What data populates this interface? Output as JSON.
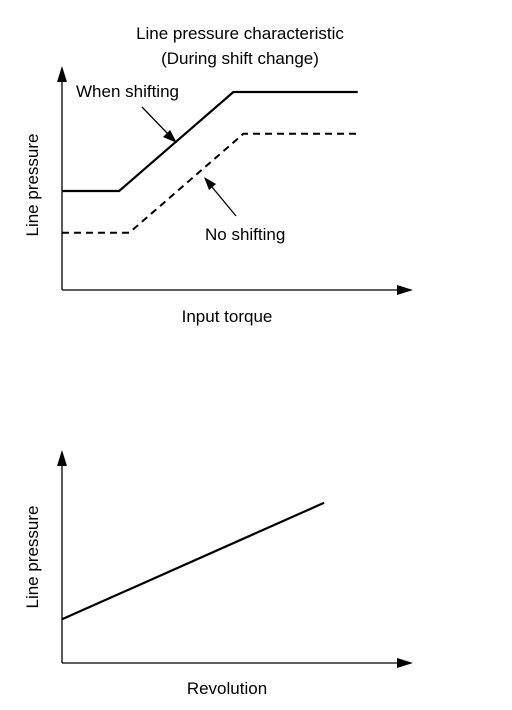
{
  "chart_data": [
    {
      "type": "line",
      "title": "Line pressure characteristic",
      "subtitle": "(During shift change)",
      "xlabel": "Input torque",
      "ylabel": "Line pressure",
      "grid": false,
      "xlim": [
        0,
        100
      ],
      "ylim": [
        0,
        100
      ],
      "series": [
        {
          "name": "When shifting",
          "style": "solid",
          "x": [
            0,
            17,
            51,
            88
          ],
          "y": [
            45,
            45,
            90,
            90
          ]
        },
        {
          "name": "No shifting",
          "style": "dashed",
          "x": [
            0,
            20,
            54,
            88
          ],
          "y": [
            26,
            26,
            71,
            71
          ]
        }
      ]
    },
    {
      "type": "line",
      "title": "",
      "xlabel": "Revolution",
      "ylabel": "Line pressure",
      "grid": false,
      "xlim": [
        0,
        100
      ],
      "ylim": [
        0,
        100
      ],
      "series": [
        {
          "name": "",
          "style": "solid",
          "x": [
            0,
            78
          ],
          "y": [
            21,
            77
          ]
        }
      ]
    }
  ]
}
